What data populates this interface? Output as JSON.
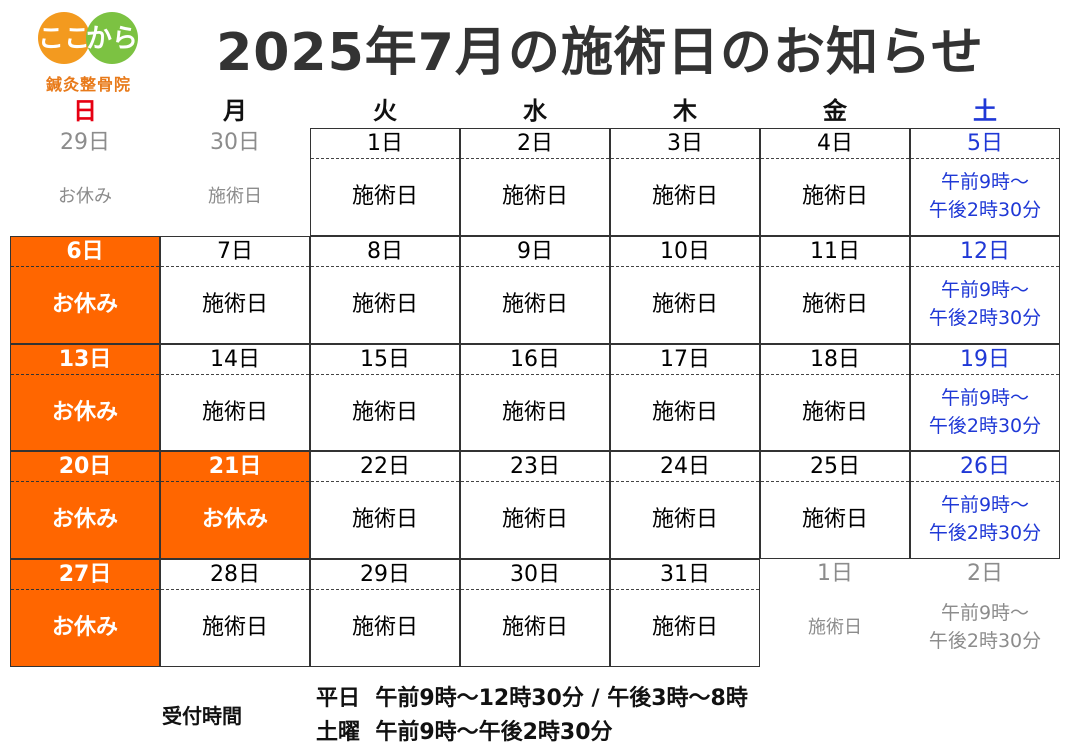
{
  "logo": {
    "text_a": "ここ",
    "text_b": "から",
    "sub": "鍼灸整骨院"
  },
  "title": "2025年7月の施術日のお知らせ",
  "weekdays": [
    "日",
    "月",
    "火",
    "水",
    "木",
    "金",
    "土"
  ],
  "weeks": [
    [
      {
        "date": "29日",
        "status": "お休み",
        "style": "grey"
      },
      {
        "date": "30日",
        "status": "施術日",
        "style": "grey"
      },
      {
        "date": "1日",
        "status": "施術日",
        "style": "normal"
      },
      {
        "date": "2日",
        "status": "施術日",
        "style": "normal"
      },
      {
        "date": "3日",
        "status": "施術日",
        "style": "normal"
      },
      {
        "date": "4日",
        "status": "施術日",
        "style": "normal"
      },
      {
        "date": "5日",
        "status": "午前9時～\n午後2時30分",
        "style": "sat"
      }
    ],
    [
      {
        "date": "6日",
        "status": "お休み",
        "style": "off"
      },
      {
        "date": "7日",
        "status": "施術日",
        "style": "normal"
      },
      {
        "date": "8日",
        "status": "施術日",
        "style": "normal"
      },
      {
        "date": "9日",
        "status": "施術日",
        "style": "normal"
      },
      {
        "date": "10日",
        "status": "施術日",
        "style": "normal"
      },
      {
        "date": "11日",
        "status": "施術日",
        "style": "normal"
      },
      {
        "date": "12日",
        "status": "午前9時～\n午後2時30分",
        "style": "sat"
      }
    ],
    [
      {
        "date": "13日",
        "status": "お休み",
        "style": "off"
      },
      {
        "date": "14日",
        "status": "施術日",
        "style": "normal"
      },
      {
        "date": "15日",
        "status": "施術日",
        "style": "normal"
      },
      {
        "date": "16日",
        "status": "施術日",
        "style": "normal"
      },
      {
        "date": "17日",
        "status": "施術日",
        "style": "normal"
      },
      {
        "date": "18日",
        "status": "施術日",
        "style": "normal"
      },
      {
        "date": "19日",
        "status": "午前9時～\n午後2時30分",
        "style": "sat"
      }
    ],
    [
      {
        "date": "20日",
        "status": "お休み",
        "style": "off"
      },
      {
        "date": "21日",
        "status": "お休み",
        "style": "off"
      },
      {
        "date": "22日",
        "status": "施術日",
        "style": "normal"
      },
      {
        "date": "23日",
        "status": "施術日",
        "style": "normal"
      },
      {
        "date": "24日",
        "status": "施術日",
        "style": "normal"
      },
      {
        "date": "25日",
        "status": "施術日",
        "style": "normal"
      },
      {
        "date": "26日",
        "status": "午前9時～\n午後2時30分",
        "style": "sat"
      }
    ],
    [
      {
        "date": "27日",
        "status": "お休み",
        "style": "off"
      },
      {
        "date": "28日",
        "status": "施術日",
        "style": "normal"
      },
      {
        "date": "29日",
        "status": "施術日",
        "style": "normal"
      },
      {
        "date": "30日",
        "status": "施術日",
        "style": "normal"
      },
      {
        "date": "31日",
        "status": "施術日",
        "style": "normal"
      },
      {
        "date": "1日",
        "status": "施術日",
        "style": "grey"
      },
      {
        "date": "2日",
        "status": "午前9時～\n午後2時30分",
        "style": "grey"
      }
    ]
  ],
  "hours": {
    "label": "受付時間",
    "weekday": "平日  午前9時～12時30分 / 午後3時～8時",
    "saturday": "土曜  午前9時～午後2時30分"
  },
  "colors": {
    "off": "#ff6600",
    "sat": "#1f38d6",
    "sun": "#e60012",
    "grey": "#8c8c8c",
    "logo_orange": "#f39a1f",
    "logo_green": "#7cc242"
  }
}
